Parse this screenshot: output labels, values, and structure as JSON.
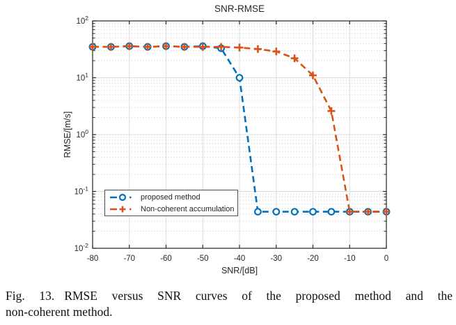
{
  "figure": {
    "caption": {
      "fig_label": "Fig. 13.",
      "line1": "RMSE versus SNR curves of the proposed method and the",
      "line2": "non-coherent method."
    }
  },
  "chart_data": {
    "type": "line",
    "title": "SNR-RMSE",
    "xlabel": "SNR/[dB]",
    "ylabel": "RMSE/[m/s]",
    "xlim": [
      -80,
      0
    ],
    "ylim": [
      0.01,
      100
    ],
    "y_scale": "log",
    "grid": "on",
    "minor_grid": "on",
    "legend_position": "southwest",
    "x_ticks": [
      -80,
      -70,
      -60,
      -50,
      -40,
      -30,
      -20,
      -10,
      0
    ],
    "y_tick_exponents": [
      2,
      1,
      0,
      -1,
      -2
    ],
    "x": [
      -80,
      -75,
      -70,
      -65,
      -60,
      -55,
      -50,
      -45,
      -40,
      -35,
      -30,
      -25,
      -20,
      -15,
      -10,
      -5,
      0
    ],
    "series": [
      {
        "name": "proposed method",
        "color": "#0072BD",
        "marker": "circle",
        "linestyle": "dashed",
        "values": [
          35,
          35,
          36,
          35,
          36,
          35,
          36,
          33,
          10,
          0.044,
          0.044,
          0.044,
          0.044,
          0.044,
          0.044,
          0.044,
          0.044
        ]
      },
      {
        "name": "Non-coherent accumulation",
        "color": "#D95319",
        "marker": "plus",
        "linestyle": "dashed",
        "values": [
          35,
          35,
          36,
          35,
          36,
          35,
          35,
          35,
          34,
          32,
          29,
          22,
          11,
          2.6,
          0.044,
          0.044,
          0.044
        ]
      }
    ]
  }
}
